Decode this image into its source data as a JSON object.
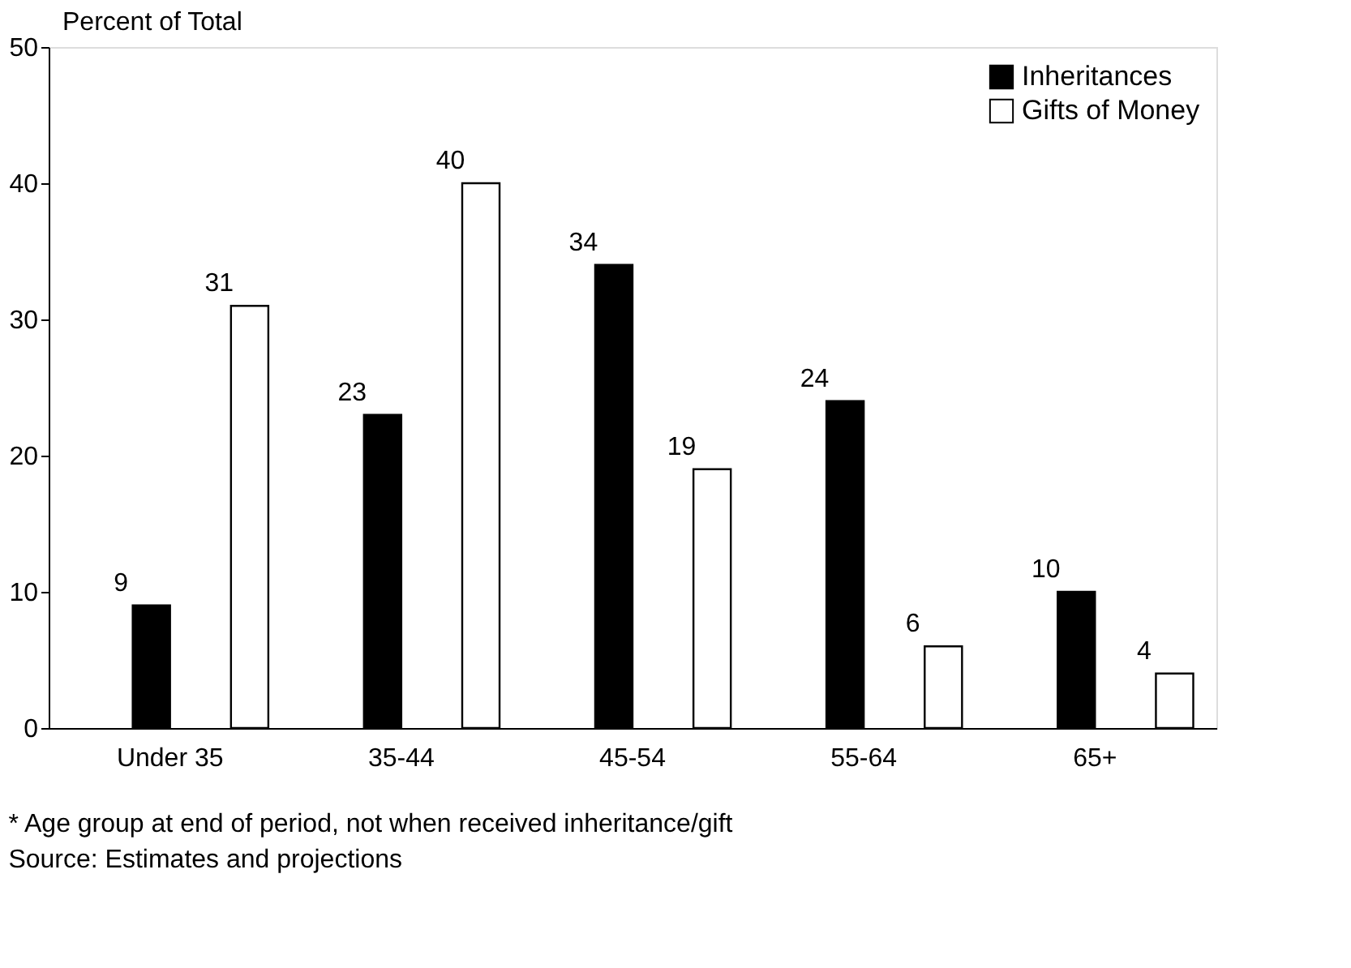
{
  "chart_data": {
    "type": "bar",
    "ylabel": "Percent of Total",
    "categories": [
      "Under 35",
      "35-44",
      "45-54",
      "55-64",
      "65+"
    ],
    "series": [
      {
        "name": "Inheritances",
        "color": "#000000",
        "values": [
          9,
          23,
          34,
          24,
          10
        ]
      },
      {
        "name": "Gifts of Money",
        "color": "#ffffff",
        "values": [
          31,
          40,
          19,
          6,
          4
        ]
      }
    ],
    "ylim": [
      0,
      50
    ],
    "yticks": [
      0,
      10,
      20,
      30,
      40,
      50
    ],
    "grid": false,
    "legend": "top right",
    "data_labels": true,
    "annotations": [
      "* Age group at end of period, not when received inheritance/gift",
      "Source: Estimates and projections"
    ]
  }
}
